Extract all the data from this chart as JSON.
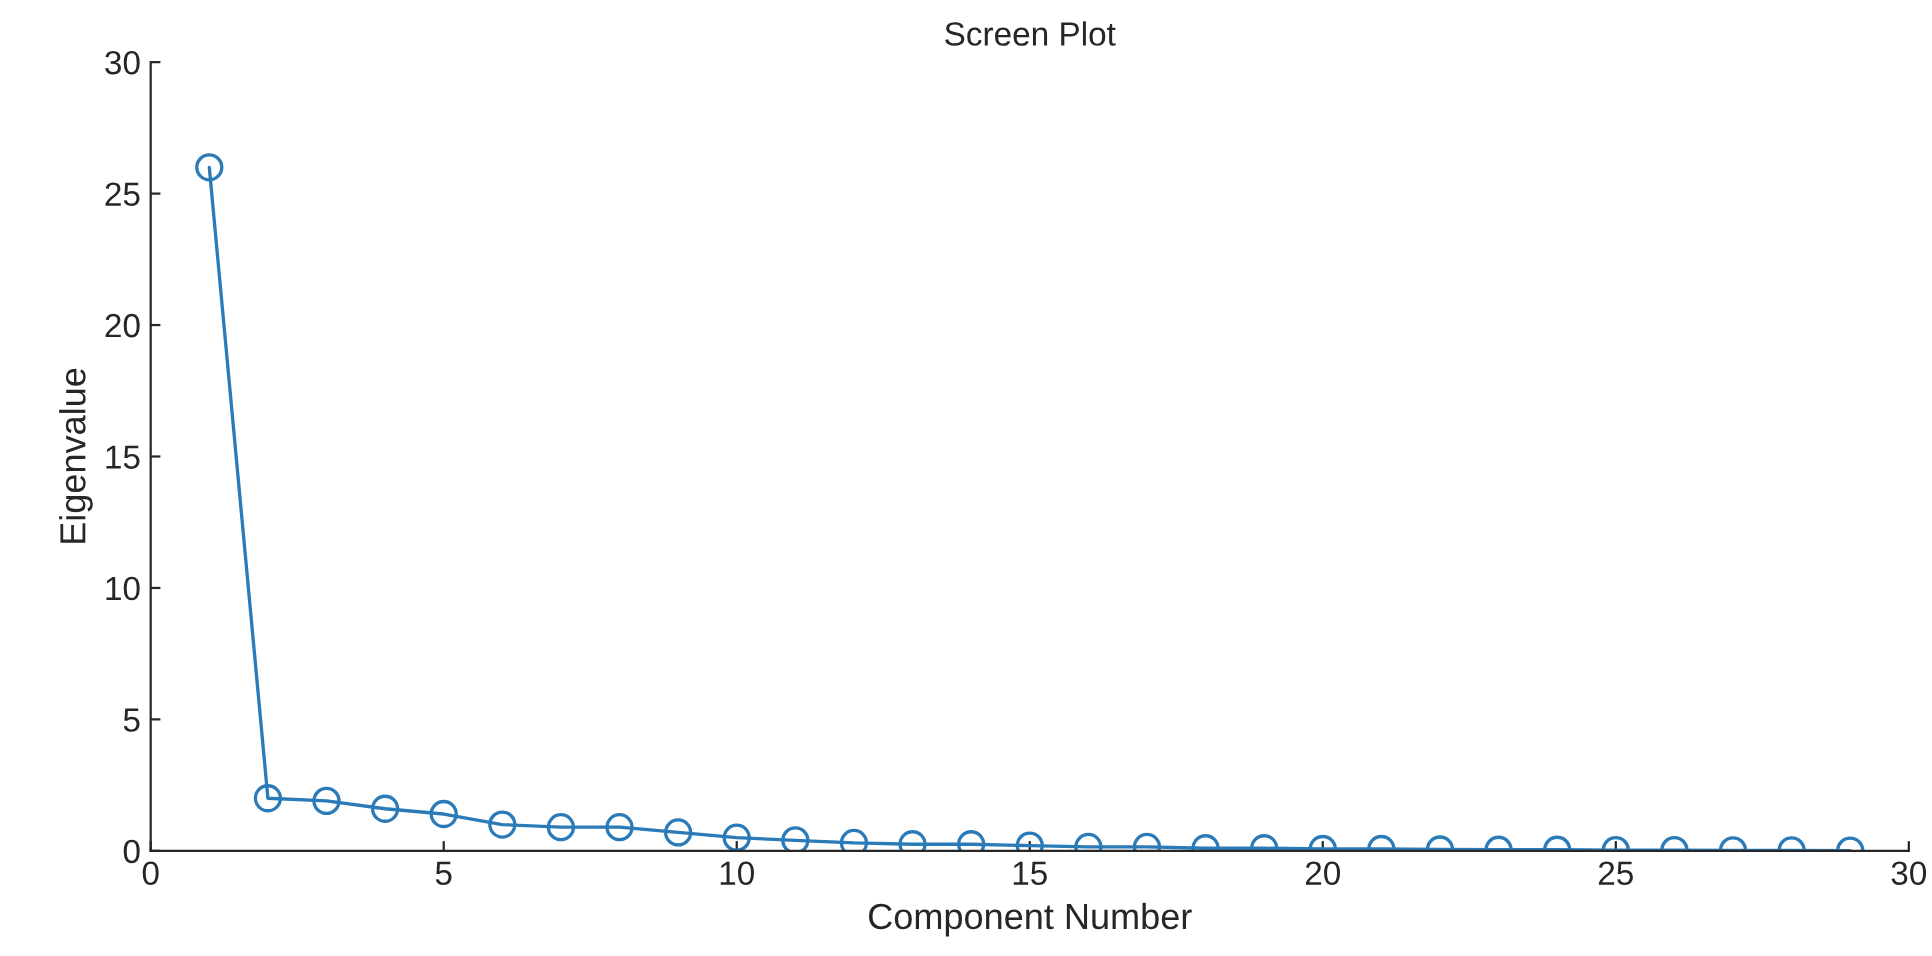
{
  "chart_data": {
    "type": "line",
    "title": "Screen Plot",
    "xlabel": "Component Number",
    "ylabel": "Eigenvalue",
    "x": [
      1,
      2,
      3,
      4,
      5,
      6,
      7,
      8,
      9,
      10,
      11,
      12,
      13,
      14,
      15,
      16,
      17,
      18,
      19,
      20,
      21,
      22,
      23,
      24,
      25,
      26,
      27,
      28,
      29
    ],
    "series": [
      {
        "color": "#2b7bb9",
        "values": [
          26.0,
          2.0,
          1.9,
          1.6,
          1.4,
          1.0,
          0.9,
          0.9,
          0.7,
          0.5,
          0.4,
          0.3,
          0.25,
          0.25,
          0.2,
          0.15,
          0.15,
          0.1,
          0.1,
          0.07,
          0.07,
          0.05,
          0.04,
          0.04,
          0.03,
          0.03,
          0.02,
          0.02,
          0.01
        ]
      }
    ],
    "xlim": [
      0,
      30
    ],
    "xticks": [
      0,
      5,
      10,
      15,
      20,
      25,
      30
    ],
    "ylim": [
      0,
      30
    ],
    "yticks": [
      0,
      5,
      10,
      15,
      20,
      25,
      30
    ],
    "marker": "circle",
    "line_style": "solid",
    "grid": false,
    "legend": false
  }
}
